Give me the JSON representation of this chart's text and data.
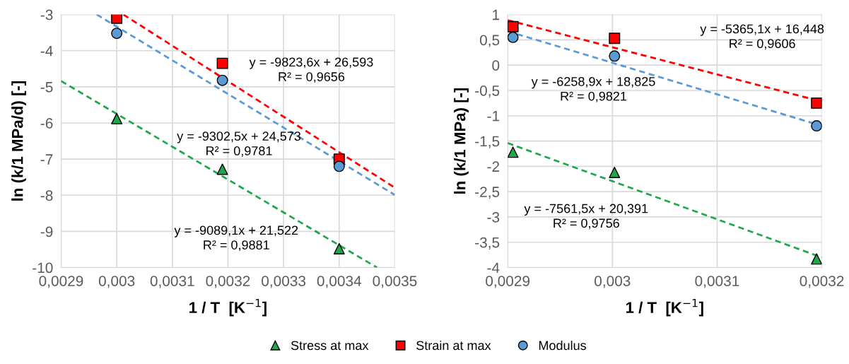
{
  "chart_data": [
    {
      "type": "scatter",
      "xlabel": "1 / T  [K$^{−1}$]",
      "ylabel": "ln (k/1 MPa/d) [-]",
      "grid": true,
      "legend": "bottom",
      "xlim": [
        0.0029,
        0.0035
      ],
      "ylim": [
        -10,
        -3
      ],
      "xticks": [
        {
          "value": 0.0029,
          "label": "0,0029"
        },
        {
          "value": 0.003,
          "label": "0,003"
        },
        {
          "value": 0.0031,
          "label": "0,0031"
        },
        {
          "value": 0.0032,
          "label": "0,0032"
        },
        {
          "value": 0.0033,
          "label": "0,0033"
        },
        {
          "value": 0.0034,
          "label": "0,0034"
        },
        {
          "value": 0.0035,
          "label": "0,0035"
        }
      ],
      "yticks": [
        -10,
        -9,
        -8,
        -7,
        -6,
        -5,
        -4,
        -3
      ],
      "series": [
        {
          "name": "Stress at max",
          "color": "#1fa84a",
          "marker": "triangle",
          "x": [
            0.003,
            0.00319,
            0.0034
          ],
          "values": [
            -5.88,
            -7.28,
            -9.48
          ]
        },
        {
          "name": "Strain at max",
          "color": "#ff0000",
          "marker": "square",
          "x": [
            0.003,
            0.00319,
            0.0034
          ],
          "values": [
            -3.1,
            -4.35,
            -7.0
          ]
        },
        {
          "name": "Modulus",
          "color": "#5b9bd5",
          "marker": "circle",
          "x": [
            0.003,
            0.00319,
            0.0034
          ],
          "values": [
            -3.52,
            -4.82,
            -7.2
          ]
        },
        {
          "type": "line",
          "color": "#1fa84a",
          "line_style": "dashed",
          "x": [
            0.0029,
            0.003468
          ],
          "values": [
            -4.84,
            -10
          ]
        },
        {
          "type": "line",
          "color": "#ff0000",
          "line_style": "dashed",
          "x": [
            0.003012,
            0.0035
          ],
          "values": [
            -3,
            -7.79
          ]
        },
        {
          "type": "line",
          "color": "#5b9bd5",
          "line_style": "dashed",
          "x": [
            0.002964,
            0.0035
          ],
          "values": [
            -3,
            -7.99
          ]
        }
      ],
      "annotations": [
        "y = -9823,6x + 26,593\nR² = 0,9656",
        "y = -9302,5x + 24,573\nR² = 0,9781",
        "y = -9089,1x + 21,522\nR² = 0,9881"
      ]
    },
    {
      "type": "scatter",
      "xlabel": "1 / T  [K$^{−1}$]",
      "ylabel": "ln (k/1 MPa) [-]",
      "grid": true,
      "xlim": [
        0.0029,
        0.0032
      ],
      "ylim": [
        -4,
        1
      ],
      "xticks": [
        {
          "value": 0.0029,
          "label": "0,0029"
        },
        {
          "value": 0.003,
          "label": "0,003"
        },
        {
          "value": 0.0031,
          "label": "0,0031"
        },
        {
          "value": 0.0032,
          "label": "0,0032"
        }
      ],
      "yticks": [
        {
          "value": -4,
          "label": "-4"
        },
        {
          "value": -3.5,
          "label": "-3,5"
        },
        {
          "value": -3,
          "label": "-3"
        },
        {
          "value": -2.5,
          "label": "-2,5"
        },
        {
          "value": -2,
          "label": "-2"
        },
        {
          "value": -1.5,
          "label": "-1,5"
        },
        {
          "value": -1,
          "label": "-1"
        },
        {
          "value": -0.5,
          "label": "-0,5"
        },
        {
          "value": 0,
          "label": "0"
        },
        {
          "value": 0.5,
          "label": "0,5"
        },
        {
          "value": 1,
          "label": "1"
        }
      ],
      "series": [
        {
          "name": "Stress at max",
          "color": "#1fa84a",
          "marker": "triangle",
          "x": [
            0.002905,
            0.003002,
            0.003195
          ],
          "values": [
            -1.72,
            -2.12,
            -3.83
          ]
        },
        {
          "name": "Strain at max",
          "color": "#ff0000",
          "marker": "square",
          "x": [
            0.002905,
            0.003002,
            0.003195
          ],
          "values": [
            0.76,
            0.53,
            -0.75
          ]
        },
        {
          "name": "Modulus",
          "color": "#5b9bd5",
          "marker": "circle",
          "x": [
            0.002905,
            0.003002,
            0.003195
          ],
          "values": [
            0.55,
            0.18,
            -1.2
          ]
        },
        {
          "type": "line",
          "color": "#1fa84a",
          "line_style": "dashed",
          "x": [
            0.0029,
            0.0032
          ],
          "values": [
            -1.54,
            -3.8
          ]
        },
        {
          "type": "line",
          "color": "#ff0000",
          "line_style": "dashed",
          "x": [
            0.0029,
            0.0032
          ],
          "values": [
            0.89,
            -0.72
          ]
        },
        {
          "type": "line",
          "color": "#5b9bd5",
          "line_style": "dashed",
          "x": [
            0.0029,
            0.0032
          ],
          "values": [
            0.67,
            -1.2
          ]
        }
      ],
      "annotations": [
        "y = -5365,1x + 16,448\nR² = 0,9606",
        "y = -6258,9x + 18,825\nR² = 0,9821",
        "y = -7561,5x + 20,391\nR² = 0,9756"
      ]
    }
  ]
}
